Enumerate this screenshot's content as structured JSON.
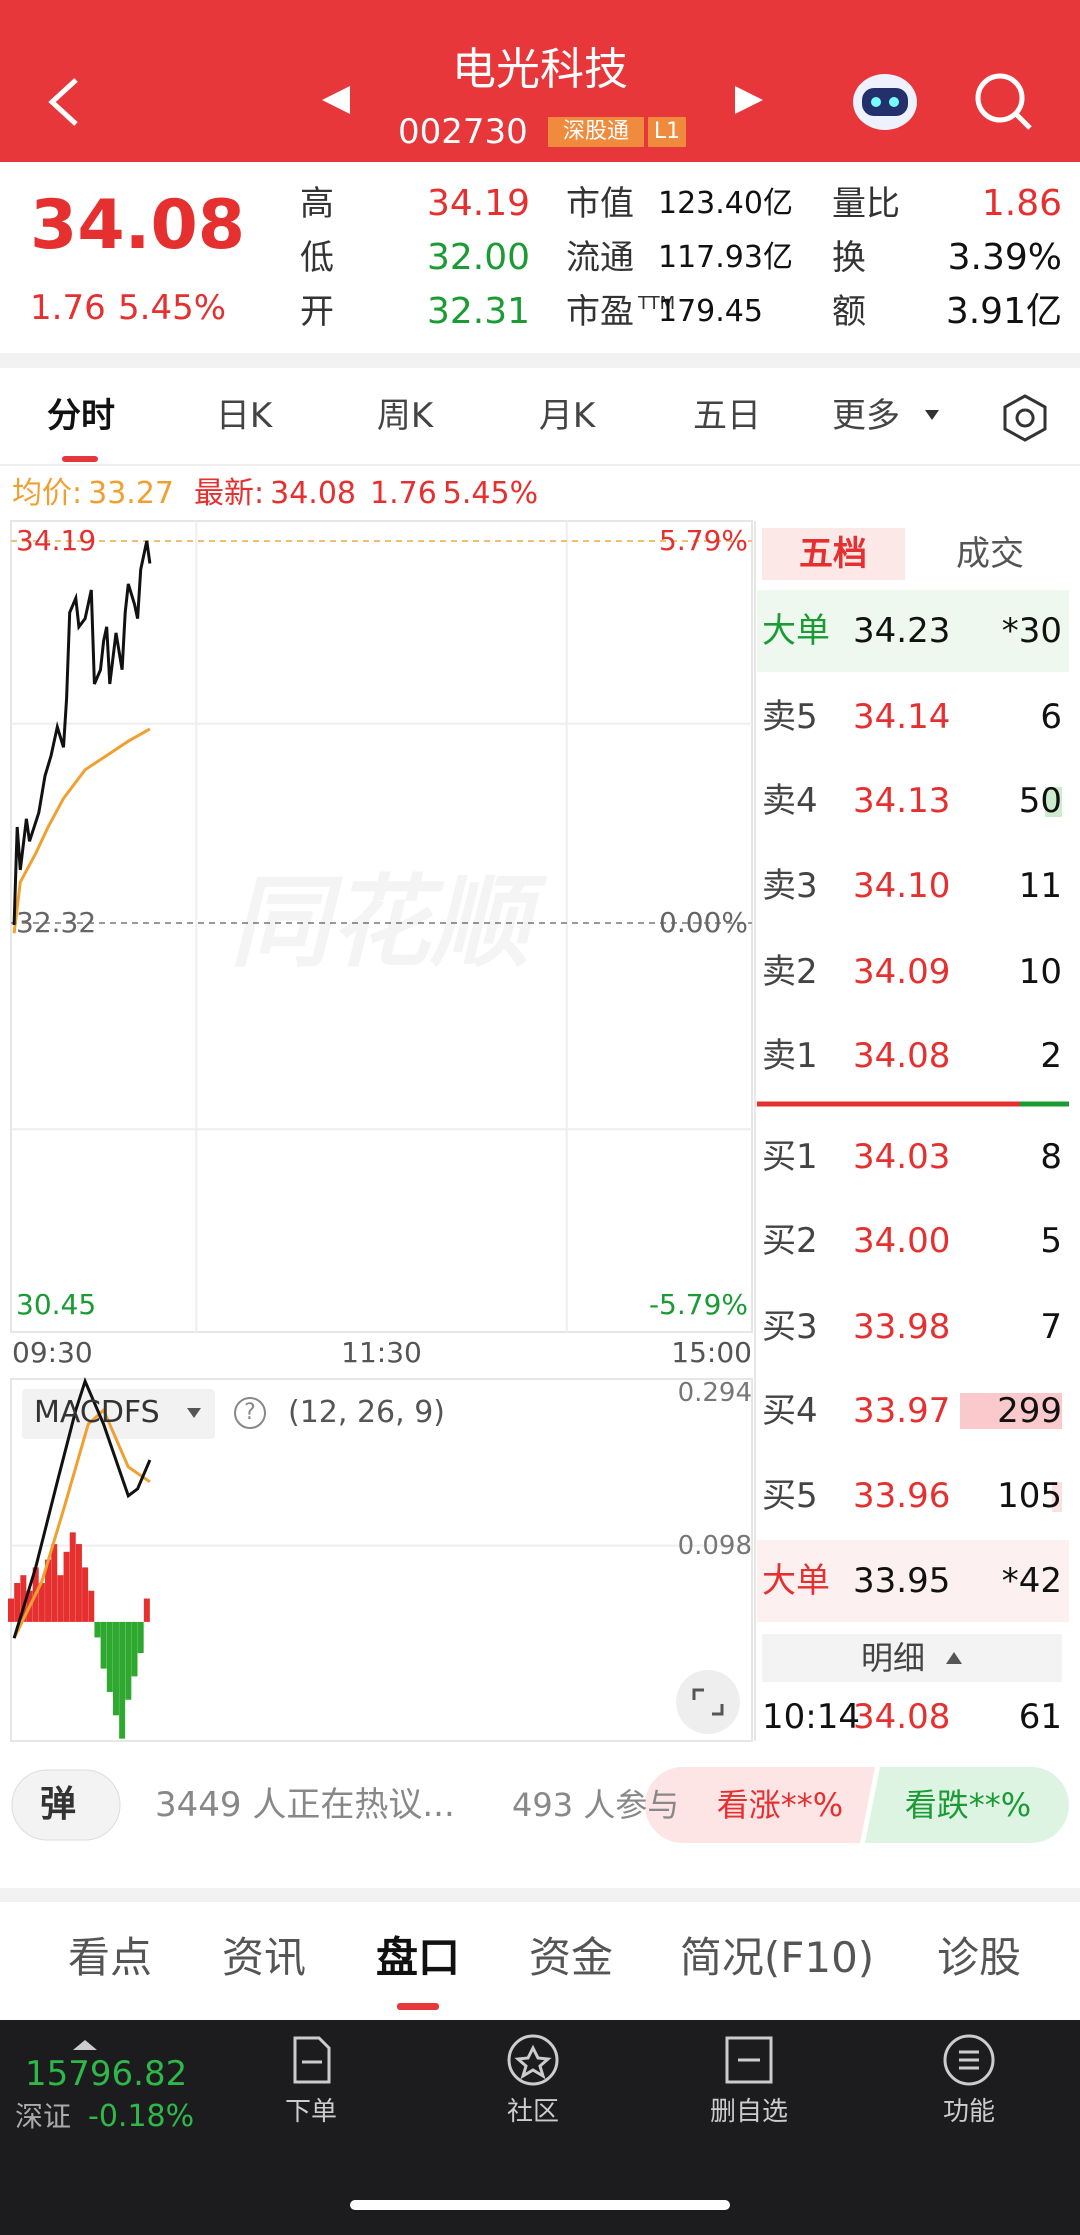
{
  "header": {
    "title": "电光科技",
    "code": "002730",
    "badges": [
      "深股通",
      "L1"
    ]
  },
  "quote": {
    "price": "34.08",
    "change": "1.76",
    "change_pct": "5.45%",
    "stats": [
      [
        {
          "label": "高",
          "value": "34.19"
        },
        {
          "label": "低",
          "value": "32.00"
        },
        {
          "label": "开",
          "value": "32.31"
        }
      ],
      [
        {
          "label": "市值",
          "value": "123.40亿"
        },
        {
          "label": "流通",
          "value": "117.93亿"
        },
        {
          "label": "市盈",
          "sup": "TTM",
          "value": "179.45"
        }
      ],
      [
        {
          "label": "量比",
          "value": "1.86"
        },
        {
          "label": "换",
          "value": "3.39%"
        },
        {
          "label": "额",
          "value": "3.91亿"
        }
      ]
    ]
  },
  "tabs": [
    "分时",
    "日K",
    "周K",
    "月K",
    "五日",
    "更多"
  ],
  "info": {
    "avg_label": "均价:",
    "avg": "33.27",
    "latest_label": "最新:",
    "latest": "34.08",
    "change": "1.76",
    "change_pct": "5.45%"
  },
  "chart": {
    "watermark": "同花顺",
    "xlim": [
      0,
      240
    ],
    "ylim": [
      30.45,
      34.19
    ],
    "yticks": [
      34.19,
      32.32,
      30.45
    ],
    "pct_ticks": [
      {
        "value": 34.19,
        "label": "5.79%"
      },
      {
        "value": 32.32,
        "label": "0.00%"
      },
      {
        "value": 30.45,
        "label": "-5.79%"
      }
    ],
    "xticks": [
      {
        "value": 0,
        "label": "09:30"
      },
      {
        "value": 120,
        "label": "11:30"
      },
      {
        "value": 240,
        "label": "15:00"
      }
    ],
    "price": {
      "color": "#111111",
      "x": [
        1,
        2,
        3,
        5,
        6,
        9,
        11,
        13,
        15,
        17,
        18,
        19,
        21,
        22,
        24,
        26,
        27,
        29,
        30,
        31,
        32,
        34,
        36,
        37,
        38,
        40,
        41,
        42,
        44,
        45
      ],
      "values": [
        32.31,
        32.79,
        32.58,
        32.83,
        32.72,
        32.86,
        33.04,
        33.14,
        33.28,
        33.18,
        33.42,
        33.84,
        33.91,
        33.77,
        33.81,
        33.95,
        33.49,
        33.56,
        33.7,
        33.77,
        33.49,
        33.74,
        33.56,
        33.84,
        33.98,
        33.88,
        33.81,
        34.05,
        34.19,
        34.08
      ]
    },
    "avg": {
      "color": "#f0a030",
      "x": [
        1,
        3,
        8,
        12,
        17,
        24,
        31,
        38,
        45
      ],
      "values": [
        32.27,
        32.52,
        32.66,
        32.79,
        32.93,
        33.07,
        33.14,
        33.21,
        33.27
      ]
    }
  },
  "macd": {
    "indicator": "MACDFS",
    "help": "?",
    "params": "(12, 26, 9)",
    "ylim": [
      -0.153,
      0.312
    ],
    "yticks": [
      0.294,
      0.098
    ],
    "up_color": "#e62f2f",
    "down_color": "#2fa82f",
    "hist": {
      "x": [
        0,
        2,
        4,
        6,
        8,
        10,
        12,
        14,
        16,
        18,
        20,
        22,
        24,
        26,
        28,
        30,
        32,
        34,
        36,
        38,
        40,
        42,
        44
      ],
      "values": [
        0.03,
        0.05,
        0.06,
        0.04,
        0.07,
        0.05,
        0.08,
        0.1,
        0.06,
        0.09,
        0.115,
        0.1,
        0.07,
        0.04,
        -0.02,
        -0.06,
        -0.09,
        -0.12,
        -0.15,
        -0.1,
        -0.07,
        -0.04,
        0.03
      ]
    },
    "dif": {
      "color": "#111111",
      "x": [
        1,
        8,
        15,
        21,
        24,
        30,
        38,
        41,
        45
      ],
      "values": [
        -0.021,
        0.07,
        0.18,
        0.272,
        0.309,
        0.254,
        0.162,
        0.171,
        0.208
      ]
    },
    "dea": {
      "color": "#f0a030",
      "x": [
        1,
        10,
        17,
        25,
        30,
        38,
        45
      ],
      "values": [
        -0.021,
        0.052,
        0.144,
        0.254,
        0.272,
        0.199,
        0.18
      ]
    }
  },
  "orderbook": {
    "tabs": [
      "五档",
      "成交"
    ],
    "big_sell": {
      "label": "大单",
      "price": "34.23",
      "vol": "*30"
    },
    "asks": [
      {
        "label": "卖5",
        "price": "34.14",
        "vol": "6"
      },
      {
        "label": "卖4",
        "price": "34.13",
        "vol": "50"
      },
      {
        "label": "卖3",
        "price": "34.10",
        "vol": "11"
      },
      {
        "label": "卖2",
        "price": "34.09",
        "vol": "10"
      },
      {
        "label": "卖1",
        "price": "34.08",
        "vol": "2"
      }
    ],
    "bids": [
      {
        "label": "买1",
        "price": "34.03",
        "vol": "8"
      },
      {
        "label": "买2",
        "price": "34.00",
        "vol": "5"
      },
      {
        "label": "买3",
        "price": "33.98",
        "vol": "7"
      },
      {
        "label": "买4",
        "price": "33.97",
        "vol": "299"
      },
      {
        "label": "买5",
        "price": "33.96",
        "vol": "105"
      }
    ],
    "big_buy": {
      "label": "大单",
      "price": "33.95",
      "vol": "*42"
    },
    "detail_label": "明细",
    "trades": [
      {
        "time": "10:14",
        "price": "34.08",
        "vol": "61"
      }
    ]
  },
  "social": {
    "danmu": "弹",
    "discussing": "3449 人正在热议...",
    "participants": "493 人参与",
    "bull": "看涨**%",
    "bear": "看跌**%"
  },
  "bottom_tabs": [
    "看点",
    "资讯",
    "盘口",
    "资金",
    "简况(F10)",
    "诊股"
  ],
  "footer": {
    "index_value": "15796.82",
    "index_name": "深证",
    "index_change": "-0.18%",
    "nav": [
      "下单",
      "社区",
      "删自选",
      "功能"
    ]
  }
}
